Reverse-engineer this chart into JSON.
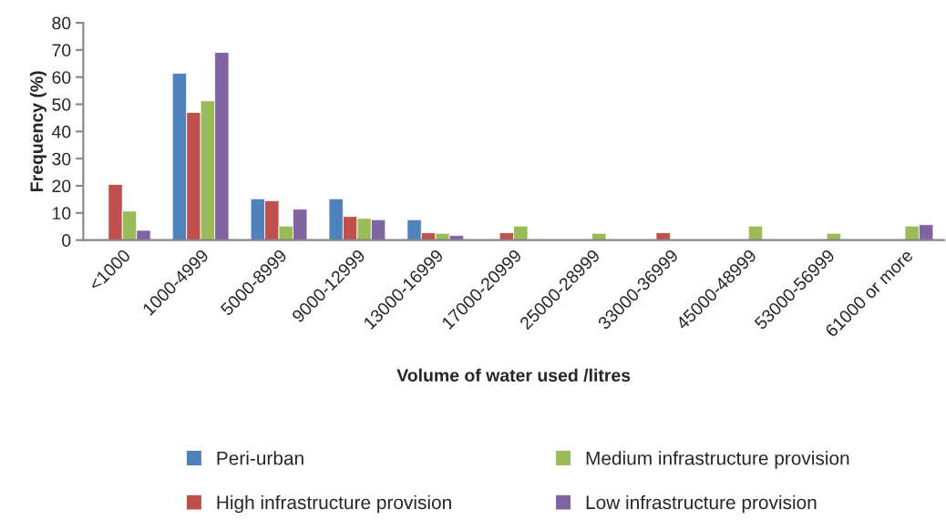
{
  "chart_data": {
    "type": "bar",
    "xlabel": "Volume of water used /litres",
    "ylabel": "Frequency (%)",
    "categories": [
      "<1000",
      "1000-4999",
      "5000-8999",
      "9000-12999",
      "13000-16999",
      "17000-20999",
      "25000-28999",
      "33000-36999",
      "45000-48999",
      "53000-56999",
      "61000 or more"
    ],
    "series": [
      {
        "name": "Peri-urban",
        "color": "#4f81bd",
        "values": [
          null,
          61.4,
          15.2,
          15.2,
          7.5,
          null,
          null,
          null,
          null,
          null,
          null
        ]
      },
      {
        "name": "High infrastructure provision",
        "color": "#c0504d",
        "values": [
          20.5,
          47.0,
          14.5,
          8.7,
          2.7,
          2.7,
          null,
          2.7,
          null,
          null,
          null
        ]
      },
      {
        "name": "Medium infrastructure provision",
        "color": "#9bbb59",
        "values": [
          10.7,
          51.3,
          5.2,
          8.0,
          2.5,
          5.2,
          2.5,
          null,
          5.2,
          2.5,
          5.2
        ]
      },
      {
        "name": "Low infrastructure provision",
        "color": "#8064a2",
        "values": [
          3.6,
          69.1,
          11.4,
          7.5,
          1.7,
          null,
          null,
          null,
          null,
          null,
          5.7
        ]
      }
    ],
    "ylim": [
      0,
      80
    ],
    "yticks": [
      0,
      10,
      20,
      30,
      40,
      50,
      60,
      70,
      80
    ],
    "grid": false,
    "legend": "bottom"
  }
}
